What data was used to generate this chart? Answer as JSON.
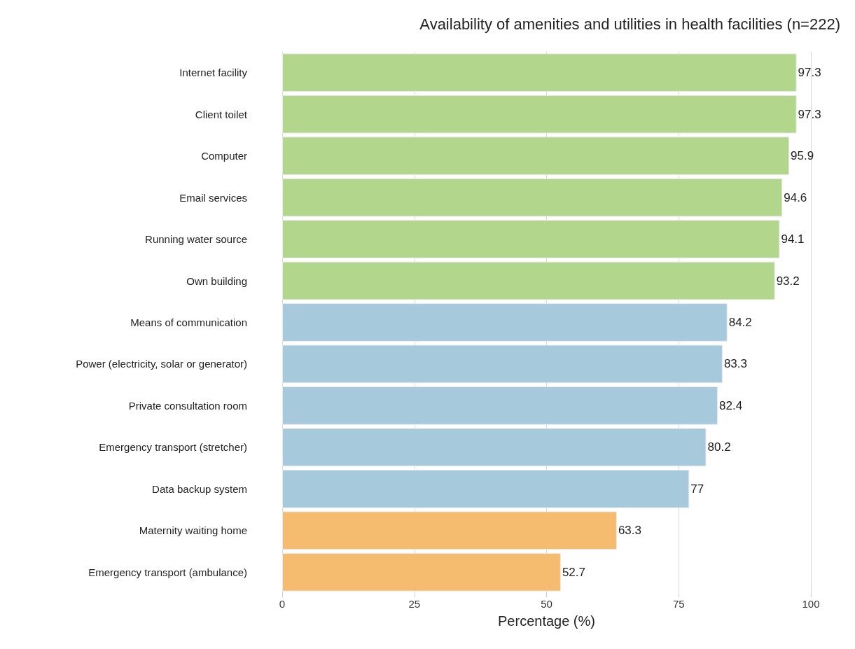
{
  "chart_data": {
    "type": "bar",
    "orientation": "horizontal",
    "title": "Availability of amenities and utilities in health facilities (n=222)",
    "xlabel": "Percentage (%)",
    "categories": [
      "Internet facility",
      "Client toilet",
      "Computer",
      "Email services",
      "Running water source",
      "Own building",
      "Means of communication",
      "Power (electricity, solar or generator)",
      "Private consultation room",
      "Emergency transport (stretcher)",
      "Data backup system",
      "Maternity waiting home",
      "Emergency transport (ambulance)"
    ],
    "values": [
      97.3,
      97.3,
      95.9,
      94.6,
      94.1,
      93.2,
      84.2,
      83.3,
      82.4,
      80.2,
      77,
      63.3,
      52.7
    ],
    "colors": [
      "#b2d68c",
      "#b2d68c",
      "#b2d68c",
      "#b2d68c",
      "#b2d68c",
      "#b2d68c",
      "#a6cadc",
      "#a6cadc",
      "#a6cadc",
      "#a6cadc",
      "#a6cadc",
      "#f5bb6e",
      "#f5bb6e"
    ],
    "xlim": [
      0,
      100
    ],
    "xticks": [
      0,
      25,
      50,
      75,
      100
    ],
    "grid": "x",
    "data_labels": true
  }
}
